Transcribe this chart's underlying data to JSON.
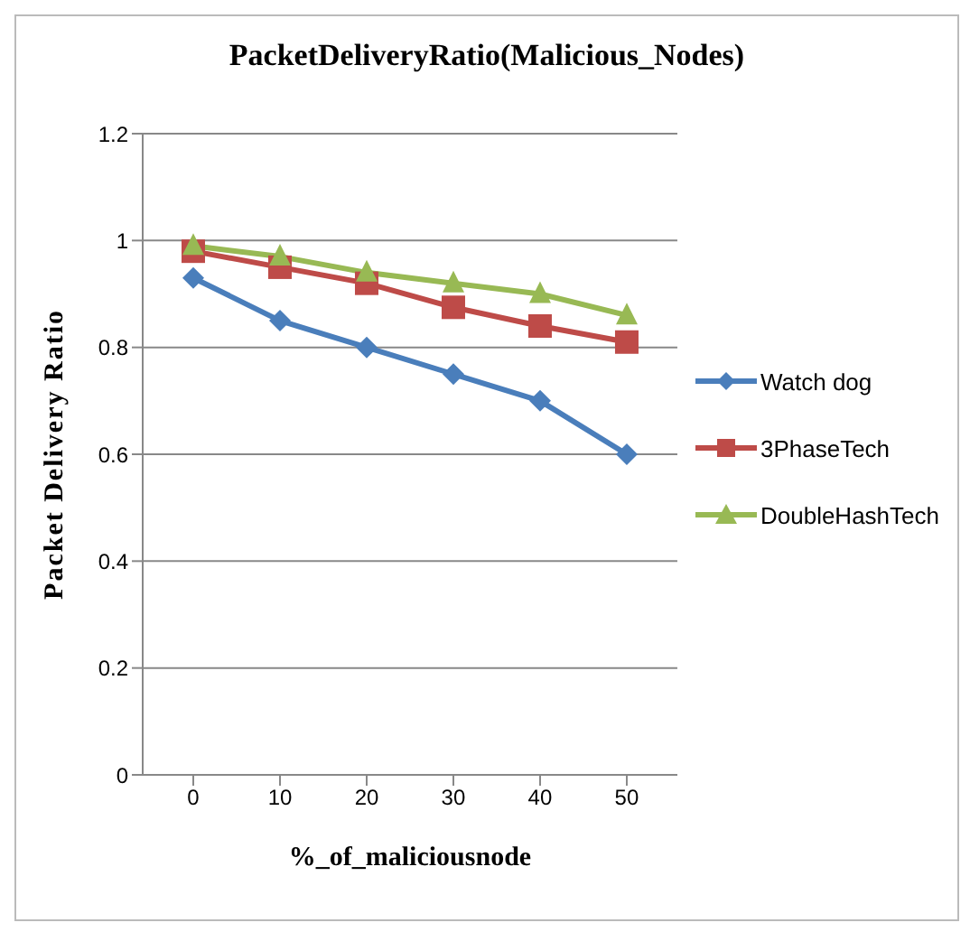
{
  "chart_data": {
    "type": "line",
    "title": "PacketDeliveryRatio(Malicious_Nodes)",
    "xlabel": "%_of_maliciousnode",
    "ylabel": "Packet Delivery Ratio",
    "categories": [
      "0",
      "10",
      "20",
      "30",
      "40",
      "50"
    ],
    "ylim": [
      0,
      1.2
    ],
    "yticks": [
      0,
      0.2,
      0.4,
      0.6,
      0.8,
      1,
      1.2
    ],
    "grid": "y",
    "legend": "right",
    "series": [
      {
        "name": "Watch dog",
        "color": "#4a7ebb",
        "marker": "diamond",
        "values": [
          0.93,
          0.85,
          0.8,
          0.75,
          0.7,
          0.6
        ]
      },
      {
        "name": "3PhaseTech",
        "color": "#be4b48",
        "marker": "square",
        "values": [
          0.98,
          0.95,
          0.92,
          0.875,
          0.84,
          0.81
        ]
      },
      {
        "name": "DoubleHashTech",
        "color": "#98b954",
        "marker": "triangle",
        "values": [
          0.99,
          0.97,
          0.94,
          0.92,
          0.9,
          0.86
        ]
      }
    ]
  }
}
